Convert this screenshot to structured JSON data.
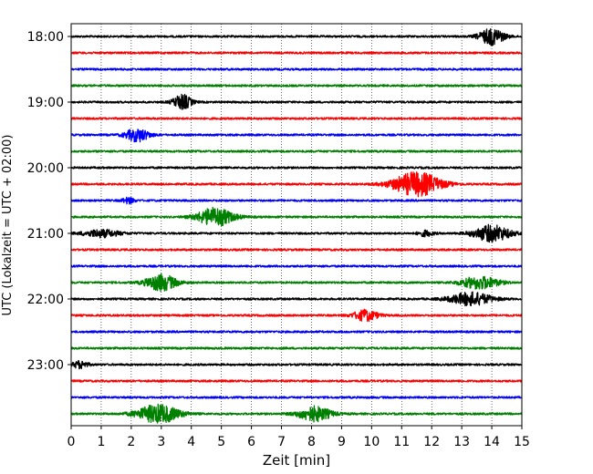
{
  "chart_data": {
    "type": "line",
    "title": "",
    "xlabel": "Zeit  [min]",
    "ylabel": "UTC (Lokalzeit = UTC + 02:00)",
    "xlim": [
      0,
      15
    ],
    "x_ticks": [
      0,
      1,
      2,
      3,
      4,
      5,
      6,
      7,
      8,
      9,
      10,
      11,
      12,
      13,
      14,
      15
    ],
    "y_tick_labels": [
      "18:00",
      "19:00",
      "20:00",
      "21:00",
      "22:00",
      "23:00"
    ],
    "y_tick_rows": [
      0,
      4,
      8,
      12,
      16,
      20
    ],
    "row_interval_min": 15,
    "grid": "vertical dotted",
    "trace_colors": [
      "#000000",
      "#ff0000",
      "#0000ff",
      "#008000"
    ],
    "traces": [
      {
        "start": "18:00",
        "events": [
          {
            "t": 14.0,
            "amp": 9,
            "w": 0.8
          }
        ]
      },
      {
        "start": "18:15",
        "events": []
      },
      {
        "start": "18:30",
        "events": []
      },
      {
        "start": "18:45",
        "events": []
      },
      {
        "start": "19:00",
        "events": [
          {
            "t": 3.7,
            "amp": 8,
            "w": 0.6
          }
        ]
      },
      {
        "start": "19:15",
        "events": []
      },
      {
        "start": "19:30",
        "events": [
          {
            "t": 2.2,
            "amp": 7,
            "w": 0.8
          }
        ]
      },
      {
        "start": "19:45",
        "events": []
      },
      {
        "start": "20:00",
        "events": []
      },
      {
        "start": "20:15",
        "events": [
          {
            "t": 11.5,
            "amp": 13,
            "w": 1.6
          }
        ]
      },
      {
        "start": "20:30",
        "events": [
          {
            "t": 1.9,
            "amp": 3,
            "w": 0.4
          }
        ]
      },
      {
        "start": "20:45",
        "events": [
          {
            "t": 4.8,
            "amp": 10,
            "w": 1.2
          }
        ]
      },
      {
        "start": "21:00",
        "events": [
          {
            "t": 1.0,
            "amp": 4,
            "w": 1.2
          },
          {
            "t": 11.8,
            "amp": 3,
            "w": 0.5
          },
          {
            "t": 14.0,
            "amp": 9,
            "w": 1.2
          }
        ]
      },
      {
        "start": "21:15",
        "events": []
      },
      {
        "start": "21:30",
        "events": []
      },
      {
        "start": "21:45",
        "events": [
          {
            "t": 3.0,
            "amp": 9,
            "w": 1.0
          },
          {
            "t": 13.6,
            "amp": 7,
            "w": 1.2
          }
        ]
      },
      {
        "start": "22:00",
        "events": [
          {
            "t": 13.3,
            "amp": 7,
            "w": 1.4
          }
        ]
      },
      {
        "start": "22:15",
        "events": [
          {
            "t": 9.8,
            "amp": 6,
            "w": 0.8
          }
        ]
      },
      {
        "start": "22:30",
        "events": []
      },
      {
        "start": "22:45",
        "events": []
      },
      {
        "start": "23:00",
        "events": [
          {
            "t": 0.3,
            "amp": 4,
            "w": 0.5
          }
        ]
      },
      {
        "start": "23:15",
        "events": []
      },
      {
        "start": "23:30",
        "events": []
      },
      {
        "start": "23:45",
        "events": [
          {
            "t": 2.9,
            "amp": 10,
            "w": 1.4
          },
          {
            "t": 8.1,
            "amp": 8,
            "w": 1.1
          }
        ]
      }
    ]
  }
}
